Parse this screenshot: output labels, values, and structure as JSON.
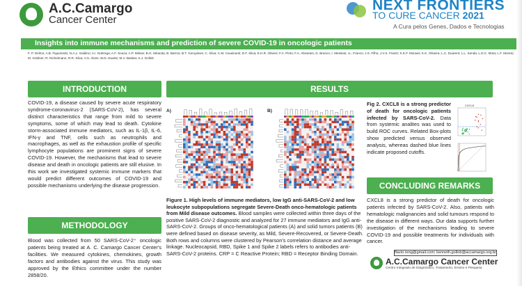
{
  "header": {
    "logo_name": "A.C.Camargo",
    "logo_sub": "Cancer Center",
    "event_line1": "NEXT FRONTIERS",
    "event_line2_pre": "TO CURE CANCER",
    "event_line2_year": "2021",
    "event_tagline": "A Cura pelos Genes, Dados e Tecnologias"
  },
  "title": "Insights into immune mechanisms and prediction of severe COVID-19 in oncologic patients",
  "authors": "F. P. Delmo; A.B. Figueiredo; N.A.L. Galdino; A.I. Nobrega; A.F. Souza; A.P. Milsoe; B.G. Miranda; B. Barros; B.T. Gonçalves; C. Silva; C.M. Cavalcanti; D.F. Silva; E.H.R. Olivieri; F.A. Pinto; F.A. Abrantes; G. Branco; I. Messias; I.L. Franco; J.S. Filho; J.V.S. Frantz; K.K.F. Moraes; K.K. Oliveira; L.C. Duarent; L.L. Senda; L.D.C. Mota; L.F. Moreto; M. Goldner; R. Richelmann; R.R. Silva; V.S. Alves; W.D. Duarte; M.V. Batista; K.J. Gollob",
  "sections": {
    "introduction": "INTRODUCTION",
    "methodology": "METHODOLOGY",
    "results": "RESULTS",
    "concluding": "CONCLUDING REMARKS"
  },
  "intro_text": "COVID-19, a disease caused by severe acute respiratory syndrome-coronavirus-2 (SARS-CoV-2), has several distinct characteristics that range from mild to severe symptoms, some of which may lead to death. Cytokine storm-associated immune mediators, such as IL-1β, IL-6, IFN-γ and TNF, cells such as neutrophils and macrophages, as well as the exhaustion profile of specific lymphocyte populations are prominent signs of severe COVID-19. However, the mechanisms that lead to severe disease and death in oncologic patients are still elusive. In this work we investigated systemic immune markers that would predict different outcomes of COVID-19 and possible mechanisms underlying the disease progression.",
  "method_text": "Blood was collected from 50 SARS-CoV-2⁺ oncologic patients being treated at A. C. Camargo Cancer Center's facilities. We measured cytokines, chemokines, growth factors and antibodies against the virus. This study was approved by the Ethics committee under the number 2858/20.",
  "figure": {
    "label_a": "A)",
    "label_b": "B)",
    "caption_bold": "Figure 1. High levels of immune mediators, low IgG anti-SARS-CoV-2 and low leukocyte subpopulations segregate Severe-Death onco-hematologic patients from Mild disease outcomes.",
    "caption_text": "Blood samples were collected within three days of the positive SARS-CoV-2 diagnostic and analyzed for 27 immune mediators and IgG anti-SARS-CoV-2. Groups of onco-hematological patients (A) and solid tumors patients (B) were defined based on disease severity, as Mild, Severe-Recovered, or Severe-Death. Both rows and columns were clustered by Pearson's correlation distance and average linkage. Nucleocapsid, RBD, Spike 1 and Spike 2 labels refers to antibodies anti-SARS-CoV-2 proteins. CRP = C Reactive Protein; RBD = Receptor Binding Domain."
  },
  "fig2": {
    "caption_bold": "Fig 2. CXCL8 is a strong predictor of death for oncologic patients infected by SARS-CoV-2.",
    "caption_text": "Data from systemic analites was used to build ROC curves. Related Box-plots show predicted versus observed analysis, whereas dashed blue lines indicate proposed cutoffs.",
    "mini_title": "CXCL8"
  },
  "conclusion_text": "CXCL8 is a strong predictor of death for oncologic patients infected by SARS-CoV-2. Also, patients with hematologic malignancies and solid tumours respond to the disease in different ways. Our data supports further investigation of the mechanisms leading to severe COVID-19 and possible treatments for individuals with cancer.",
  "contact": "flavio.reng@gmail.com; kenneth.gollob@accamargo.org.br",
  "footer": {
    "name": "A.C.Camargo Cancer Center",
    "sub": "Centro Integrado de Diagnóstico, Tratamento, Ensino e Pesquisa"
  },
  "colors": {
    "accent_green": "#4caf50",
    "brand_blue": "#1f84c6",
    "heat_red": "#c0392b",
    "heat_blue": "#2c6fbb"
  }
}
